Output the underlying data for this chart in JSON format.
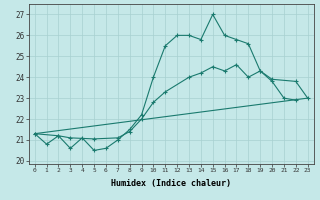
{
  "xlabel": "Humidex (Indice chaleur)",
  "bg_color": "#c5e8e8",
  "grid_color": "#a8d0d0",
  "line_color": "#1a7a6e",
  "xlim": [
    -0.5,
    23.5
  ],
  "ylim": [
    19.85,
    27.5
  ],
  "yticks": [
    20,
    21,
    22,
    23,
    24,
    25,
    26,
    27
  ],
  "xticks": [
    0,
    1,
    2,
    3,
    4,
    5,
    6,
    7,
    8,
    9,
    10,
    11,
    12,
    13,
    14,
    15,
    16,
    17,
    18,
    19,
    20,
    21,
    22,
    23
  ],
  "line1_x": [
    0,
    1,
    2,
    3,
    4,
    5,
    6,
    7,
    8,
    9,
    10,
    11,
    12,
    13,
    14,
    15,
    16,
    17,
    18,
    19,
    20,
    21,
    22
  ],
  "line1_y": [
    21.3,
    20.8,
    21.2,
    20.6,
    21.1,
    20.5,
    20.6,
    21.0,
    21.5,
    22.2,
    24.0,
    25.5,
    26.0,
    26.0,
    25.8,
    27.0,
    26.0,
    25.8,
    25.6,
    24.3,
    23.8,
    23.0,
    22.9
  ],
  "line2_x": [
    0,
    2,
    3,
    5,
    7,
    8,
    9,
    10,
    11,
    13,
    14,
    15,
    16,
    17,
    18,
    19,
    20,
    22,
    23
  ],
  "line2_y": [
    21.3,
    21.2,
    21.1,
    21.05,
    21.1,
    21.4,
    22.0,
    22.8,
    23.3,
    24.0,
    24.2,
    24.5,
    24.3,
    24.6,
    24.0,
    24.3,
    23.9,
    23.8,
    23.0
  ],
  "line3_x": [
    0,
    23
  ],
  "line3_y": [
    21.3,
    23.0
  ]
}
